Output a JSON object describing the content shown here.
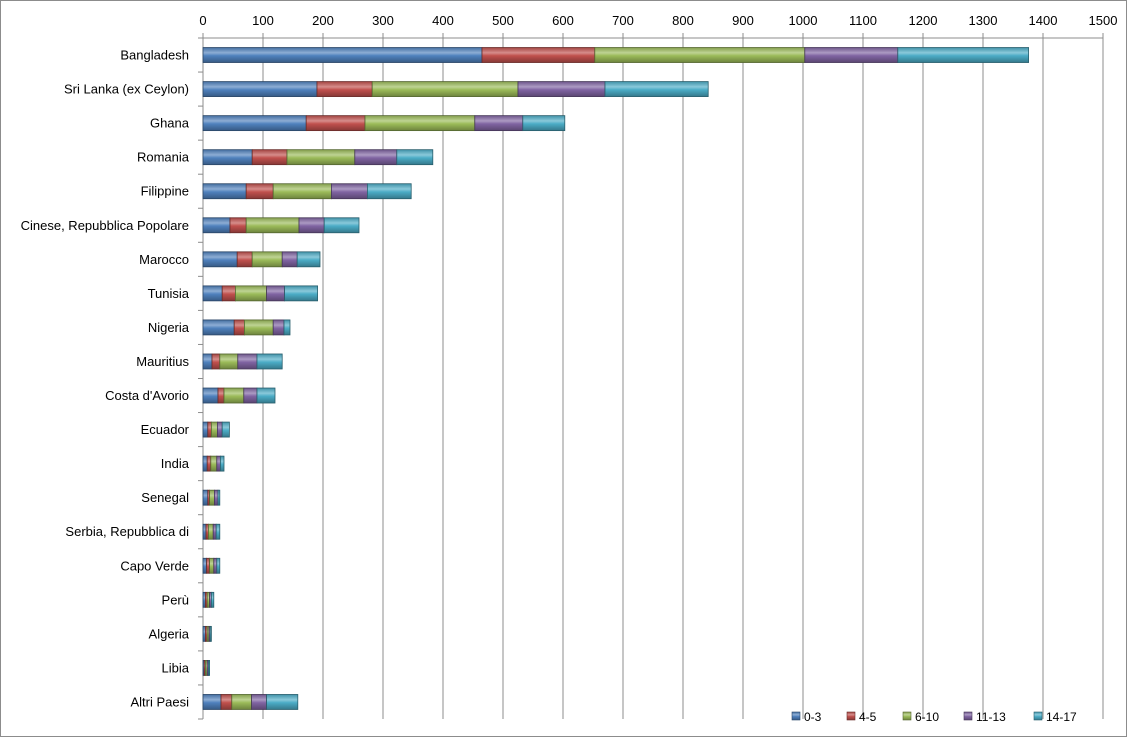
{
  "chart_data": {
    "type": "bar",
    "orientation": "horizontal",
    "stacked": true,
    "title": "",
    "xlabel": "",
    "ylabel": "",
    "xlim": [
      0,
      1500
    ],
    "x_ticks": [
      0,
      100,
      200,
      300,
      400,
      500,
      600,
      700,
      800,
      900,
      1000,
      1100,
      1200,
      1300,
      1400,
      1500
    ],
    "x_axis_position": "top",
    "grid": "vertical",
    "legend_position": "bottom-right",
    "categories": [
      "Bangladesh",
      "Sri Lanka (ex Ceylon)",
      "Ghana",
      "Romania",
      "Filippine",
      "Cinese, Repubblica Popolare",
      "Marocco",
      "Tunisia",
      "Nigeria",
      "Mauritius",
      "Costa d'Avorio",
      "Ecuador",
      "India",
      "Senegal",
      "Serbia, Repubblica di",
      "Capo Verde",
      "Perù",
      "Algeria",
      "Libia",
      "Altri Paesi"
    ],
    "series": [
      {
        "name": "0-3",
        "color": "#4f81bd",
        "values": [
          465,
          190,
          172,
          82,
          72,
          45,
          57,
          32,
          52,
          15,
          25,
          8,
          7,
          8,
          5,
          6,
          4,
          4,
          2,
          30
        ]
      },
      {
        "name": "4-5",
        "color": "#c0504d",
        "values": [
          188,
          92,
          98,
          58,
          45,
          27,
          25,
          22,
          17,
          13,
          10,
          6,
          6,
          3,
          4,
          5,
          3,
          3,
          2,
          18
        ]
      },
      {
        "name": "6-10",
        "color": "#9bbb59",
        "values": [
          350,
          243,
          183,
          113,
          97,
          88,
          50,
          52,
          48,
          30,
          33,
          10,
          10,
          8,
          8,
          7,
          4,
          3,
          3,
          33
        ]
      },
      {
        "name": "11-13",
        "color": "#8064a2",
        "values": [
          155,
          145,
          80,
          70,
          60,
          42,
          25,
          30,
          18,
          32,
          22,
          8,
          6,
          6,
          5,
          5,
          3,
          2,
          2,
          25
        ]
      },
      {
        "name": "14-17",
        "color": "#4bacc6",
        "values": [
          218,
          172,
          70,
          60,
          73,
          58,
          38,
          55,
          10,
          42,
          30,
          12,
          6,
          3,
          6,
          5,
          4,
          2,
          2,
          52
        ]
      }
    ]
  }
}
